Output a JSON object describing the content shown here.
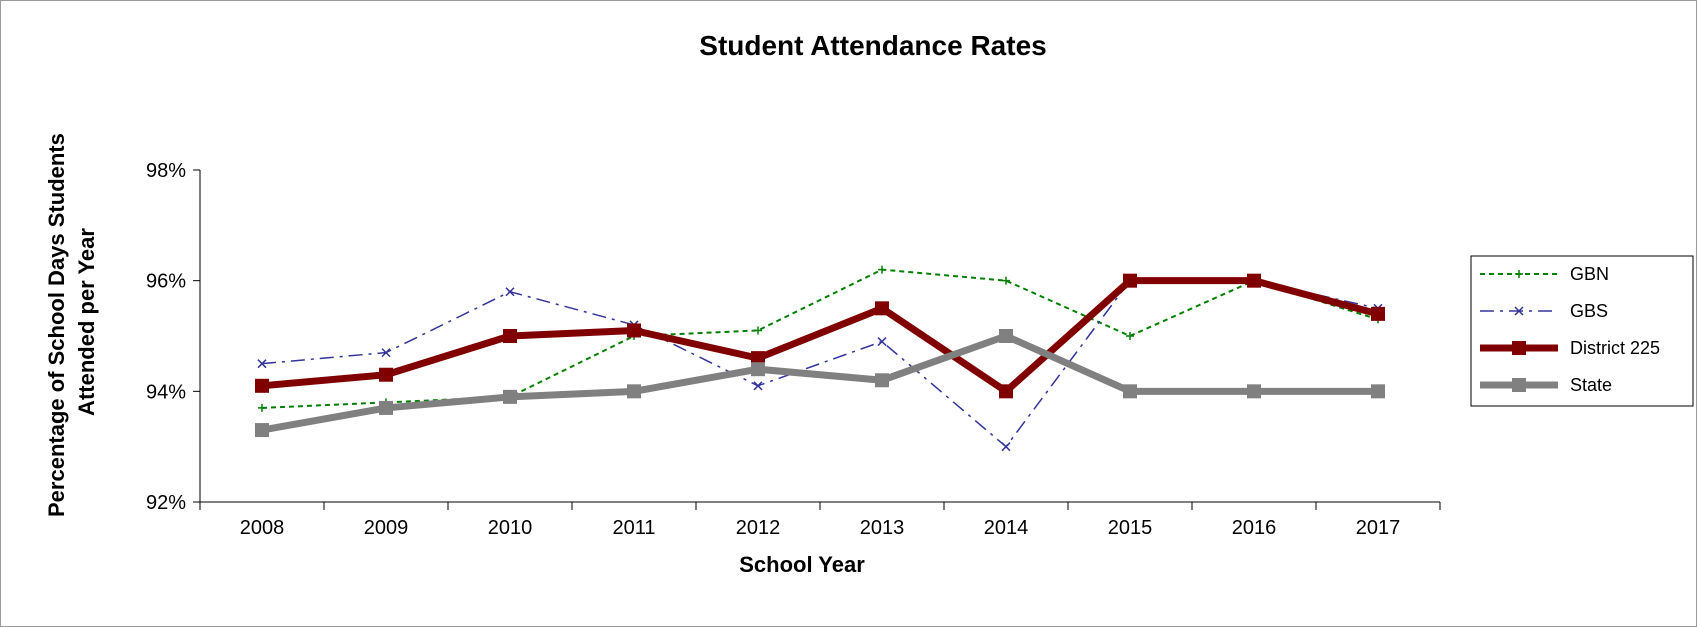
{
  "chart_data": {
    "type": "line",
    "title": "Student Attendance Rates",
    "xlabel": "School Year",
    "ylabel": "Percentage of School Days Students Attended per Year",
    "ylabel_lines": [
      "Percentage of School Days Students",
      "Attended per Year"
    ],
    "categories": [
      "2008",
      "2009",
      "2010",
      "2011",
      "2012",
      "2013",
      "2014",
      "2015",
      "2016",
      "2017"
    ],
    "ylim": [
      92,
      98
    ],
    "yticks": [
      92,
      94,
      96,
      98
    ],
    "ytick_labels": [
      "92%",
      "94%",
      "96%",
      "98%"
    ],
    "grid": false,
    "legend_position": "right",
    "series": [
      {
        "name": "GBN",
        "color": "#008000",
        "style": "dashed",
        "marker": "plus",
        "values": [
          93.7,
          93.8,
          93.9,
          95.0,
          95.1,
          96.2,
          96.0,
          95.0,
          96.0,
          95.3
        ]
      },
      {
        "name": "GBS",
        "color": "#333399",
        "style": "dash-dot",
        "marker": "x",
        "values": [
          94.5,
          94.7,
          95.8,
          95.2,
          94.1,
          94.9,
          93.0,
          96.0,
          96.0,
          95.5
        ]
      },
      {
        "name": "District 225",
        "color": "#800000",
        "style": "solid-thick",
        "marker": "square",
        "values": [
          94.1,
          94.3,
          95.0,
          95.1,
          94.6,
          95.5,
          94.0,
          96.0,
          96.0,
          95.4
        ]
      },
      {
        "name": "State",
        "color": "#808080",
        "style": "solid-thick",
        "marker": "square",
        "values": [
          93.3,
          93.7,
          93.9,
          94.0,
          94.4,
          94.2,
          95.0,
          94.0,
          94.0,
          94.0
        ]
      }
    ]
  }
}
